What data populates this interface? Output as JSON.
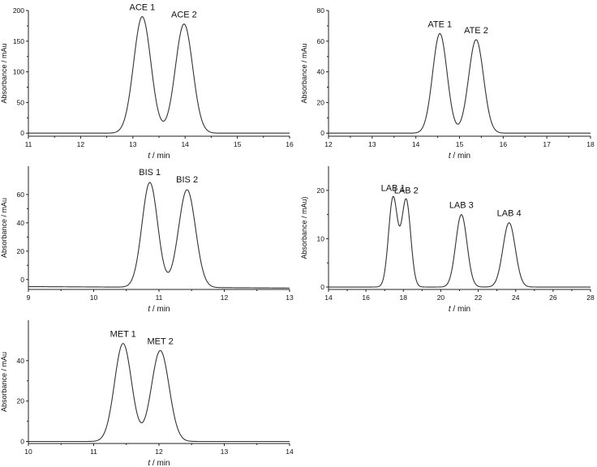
{
  "chart_data": [
    {
      "type": "line",
      "xlabel_italic": "t",
      "xlabel_unit": " / min",
      "ylabel": "Absorbance / mAu",
      "xlim": [
        11,
        16
      ],
      "ylim": [
        -5,
        200
      ],
      "xticks": [
        11,
        12,
        13,
        14,
        15,
        16
      ],
      "yticks": [
        0,
        50,
        100,
        150,
        200
      ],
      "baseline": 0,
      "peaks": [
        {
          "label": "ACE 1",
          "center": 13.18,
          "height": 190,
          "sigma": 0.165
        },
        {
          "label": "ACE 2",
          "center": 13.98,
          "height": 178,
          "sigma": 0.165
        }
      ]
    },
    {
      "type": "line",
      "xlabel_italic": "t",
      "xlabel_unit": " / min",
      "ylabel": "Absorbance / mAu",
      "xlim": [
        12,
        18
      ],
      "ylim": [
        -2,
        80
      ],
      "xticks": [
        12,
        13,
        14,
        15,
        16,
        17,
        18
      ],
      "yticks": [
        0,
        20,
        40,
        60,
        80
      ],
      "baseline": 0,
      "peaks": [
        {
          "label": "ATE 1",
          "center": 14.55,
          "height": 65,
          "sigma": 0.165
        },
        {
          "label": "ATE 2",
          "center": 15.38,
          "height": 61,
          "sigma": 0.17
        }
      ]
    },
    {
      "type": "line",
      "xlabel_italic": "t",
      "xlabel_unit": " / min",
      "ylabel": "Absorbance / mAu",
      "xlim": [
        9,
        13
      ],
      "ylim": [
        -7,
        80
      ],
      "xticks": [
        9,
        10,
        11,
        12,
        13
      ],
      "yticks": [
        0,
        20,
        40,
        60
      ],
      "baseline": -5,
      "baseline_end": -6,
      "peaks": [
        {
          "label": "BIS 1",
          "center": 10.86,
          "height": 69,
          "sigma": 0.12
        },
        {
          "label": "BIS 2",
          "center": 11.43,
          "height": 64,
          "sigma": 0.13
        }
      ]
    },
    {
      "type": "line",
      "xlabel_italic": "t",
      "xlabel_unit": " / min",
      "ylabel": "Absorbance / mAu)",
      "xlim": [
        14,
        28
      ],
      "ylim": [
        -0.5,
        25
      ],
      "xticks": [
        14,
        16,
        18,
        20,
        22,
        24,
        26,
        28
      ],
      "yticks": [
        0,
        10,
        20
      ],
      "baseline": 0,
      "peaks": [
        {
          "label": "LAB 1",
          "center": 17.45,
          "height": 18.5,
          "sigma": 0.24
        },
        {
          "label": "LAB 2",
          "center": 18.15,
          "height": 18.0,
          "sigma": 0.24
        },
        {
          "label": "LAB 3",
          "center": 21.1,
          "height": 15.0,
          "sigma": 0.3
        },
        {
          "label": "LAB 4",
          "center": 23.65,
          "height": 13.3,
          "sigma": 0.33
        }
      ]
    },
    {
      "type": "line",
      "xlabel_italic": "t",
      "xlabel_unit": " / min",
      "ylabel": "Absorbance / mAu",
      "xlim": [
        10,
        14
      ],
      "ylim": [
        -1,
        60
      ],
      "xticks": [
        10,
        11,
        12,
        13,
        14
      ],
      "yticks": [
        0,
        20,
        40
      ],
      "baseline": 0,
      "peaks": [
        {
          "label": "MET 1",
          "center": 11.45,
          "height": 48.5,
          "sigma": 0.13
        },
        {
          "label": "MET 2",
          "center": 12.02,
          "height": 45,
          "sigma": 0.135
        }
      ]
    }
  ]
}
